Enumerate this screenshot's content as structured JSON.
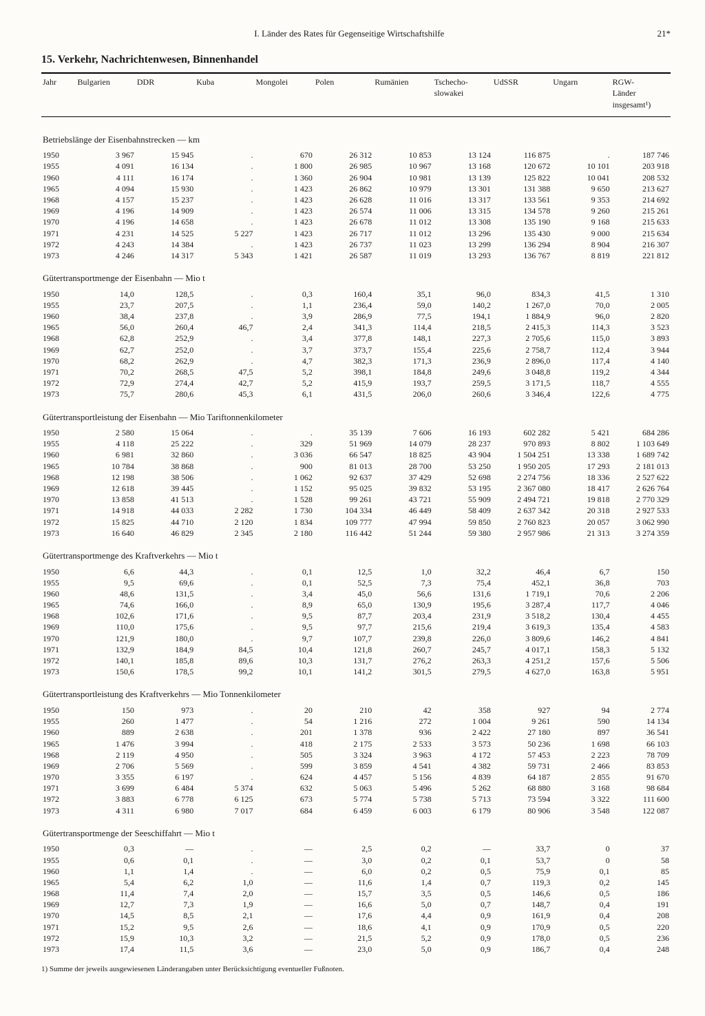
{
  "header": {
    "left": "I. Länder des Rates für Gegenseitige Wirtschaftshilfe",
    "right": "21*"
  },
  "title": "15. Verkehr, Nachrichtenwesen, Binnenhandel",
  "columns": [
    "Jahr",
    "Bulgarien",
    "DDR",
    "Kuba",
    "Mongolei",
    "Polen",
    "Rumänien",
    "Tschecho-\nslowakei",
    "UdSSR",
    "Ungarn",
    "RGW-\nLänder\ninsgesamt¹)"
  ],
  "footnote": "1) Summe der jeweils ausgewiesenen Länderangaben unter Berücksichtigung eventueller Fußnoten.",
  "sections": [
    {
      "title": "Betriebslänge der Eisenbahnstrecken — km",
      "rows": [
        [
          "1950",
          "3 967",
          "15 945",
          ".",
          "670",
          "26 312",
          "10 853",
          "13 124",
          "116 875",
          ".",
          "187 746"
        ],
        [
          "1955",
          "4 091",
          "16 134",
          ".",
          "1 800",
          "26 985",
          "10 967",
          "13 168",
          "120 672",
          "10 101",
          "203 918"
        ],
        [
          "1960",
          "4 111",
          "16 174",
          ".",
          "1 360",
          "26 904",
          "10 981",
          "13 139",
          "125 822",
          "10 041",
          "208 532"
        ],
        [
          "1965",
          "4 094",
          "15 930",
          ".",
          "1 423",
          "26 862",
          "10 979",
          "13 301",
          "131 388",
          "9 650",
          "213 627"
        ],
        [
          "1968",
          "4 157",
          "15 237",
          ".",
          "1 423",
          "26 628",
          "11 016",
          "13 317",
          "133 561",
          "9 353",
          "214 692"
        ],
        [
          "1969",
          "4 196",
          "14 909",
          ".",
          "1 423",
          "26 574",
          "11 006",
          "13 315",
          "134 578",
          "9 260",
          "215 261"
        ],
        [
          "1970",
          "4 196",
          "14 658",
          ".",
          "1 423",
          "26 678",
          "11 012",
          "13 308",
          "135 190",
          "9 168",
          "215 633"
        ],
        [
          "1971",
          "4 231",
          "14 525",
          "5 227",
          "1 423",
          "26 717",
          "11 012",
          "13 296",
          "135 430",
          "9 000",
          "215 634"
        ],
        [
          "1972",
          "4 243",
          "14 384",
          ".",
          "1 423",
          "26 737",
          "11 023",
          "13 299",
          "136 294",
          "8 904",
          "216 307"
        ],
        [
          "1973",
          "4 246",
          "14 317",
          "5 343",
          "1 421",
          "26 587",
          "11 019",
          "13 293",
          "136 767",
          "8 819",
          "221 812"
        ]
      ]
    },
    {
      "title": "Gütertransportmenge der Eisenbahn — Mio t",
      "rows": [
        [
          "1950",
          "14,0",
          "128,5",
          ".",
          "0,3",
          "160,4",
          "35,1",
          "96,0",
          "834,3",
          "41,5",
          "1 310"
        ],
        [
          "1955",
          "23,7",
          "207,5",
          ".",
          "1,1",
          "236,4",
          "59,0",
          "140,2",
          "1 267,0",
          "70,0",
          "2 005"
        ],
        [
          "1960",
          "38,4",
          "237,8",
          ".",
          "3,9",
          "286,9",
          "77,5",
          "194,1",
          "1 884,9",
          "96,0",
          "2 820"
        ],
        [
          "1965",
          "56,0",
          "260,4",
          "46,7",
          "2,4",
          "341,3",
          "114,4",
          "218,5",
          "2 415,3",
          "114,3",
          "3 523"
        ],
        [
          "1968",
          "62,8",
          "252,9",
          ".",
          "3,4",
          "377,8",
          "148,1",
          "227,3",
          "2 705,6",
          "115,0",
          "3 893"
        ],
        [
          "1969",
          "62,7",
          "252,0",
          ".",
          "3,7",
          "373,7",
          "155,4",
          "225,6",
          "2 758,7",
          "112,4",
          "3 944"
        ],
        [
          "1970",
          "68,2",
          "262,9",
          ".",
          "4,7",
          "382,3",
          "171,3",
          "236,9",
          "2 896,0",
          "117,4",
          "4 140"
        ],
        [
          "1971",
          "70,2",
          "268,5",
          "47,5",
          "5,2",
          "398,1",
          "184,8",
          "249,6",
          "3 048,8",
          "119,2",
          "4 344"
        ],
        [
          "1972",
          "72,9",
          "274,4",
          "42,7",
          "5,2",
          "415,9",
          "193,7",
          "259,5",
          "3 171,5",
          "118,7",
          "4 555"
        ],
        [
          "1973",
          "75,7",
          "280,6",
          "45,3",
          "6,1",
          "431,5",
          "206,0",
          "260,6",
          "3 346,4",
          "122,6",
          "4 775"
        ]
      ]
    },
    {
      "title": "Gütertransportleistung der Eisenbahn — Mio Tariftonnenkilometer",
      "rows": [
        [
          "1950",
          "2 580",
          "15 064",
          ".",
          ".",
          "35 139",
          "7 606",
          "16 193",
          "602 282",
          "5 421",
          "684 286"
        ],
        [
          "1955",
          "4 118",
          "25 222",
          ".",
          "329",
          "51 969",
          "14 079",
          "28 237",
          "970 893",
          "8 802",
          "1 103 649"
        ],
        [
          "1960",
          "6 981",
          "32 860",
          ".",
          "3 036",
          "66 547",
          "18 825",
          "43 904",
          "1 504 251",
          "13 338",
          "1 689 742"
        ],
        [
          "1965",
          "10 784",
          "38 868",
          ".",
          "900",
          "81 013",
          "28 700",
          "53 250",
          "1 950 205",
          "17 293",
          "2 181 013"
        ],
        [
          "1968",
          "12 198",
          "38 506",
          ".",
          "1 062",
          "92 637",
          "37 429",
          "52 698",
          "2 274 756",
          "18 336",
          "2 527 622"
        ],
        [
          "1969",
          "12 618",
          "39 445",
          ".",
          "1 152",
          "95 025",
          "39 832",
          "53 195",
          "2 367 080",
          "18 417",
          "2 626 764"
        ],
        [
          "1970",
          "13 858",
          "41 513",
          ".",
          "1 528",
          "99 261",
          "43 721",
          "55 909",
          "2 494 721",
          "19 818",
          "2 770 329"
        ],
        [
          "1971",
          "14 918",
          "44 033",
          "2 282",
          "1 730",
          "104 334",
          "46 449",
          "58 409",
          "2 637 342",
          "20 318",
          "2 927 533"
        ],
        [
          "1972",
          "15 825",
          "44 710",
          "2 120",
          "1 834",
          "109 777",
          "47 994",
          "59 850",
          "2 760 823",
          "20 057",
          "3 062 990"
        ],
        [
          "1973",
          "16 640",
          "46 829",
          "2 345",
          "2 180",
          "116 442",
          "51 244",
          "59 380",
          "2 957 986",
          "21 313",
          "3 274 359"
        ]
      ]
    },
    {
      "title": "Gütertransportmenge des Kraftverkehrs — Mio t",
      "rows": [
        [
          "1950",
          "6,6",
          "44,3",
          ".",
          "0,1",
          "12,5",
          "1,0",
          "32,2",
          "46,4",
          "6,7",
          "150"
        ],
        [
          "1955",
          "9,5",
          "69,6",
          ".",
          "0,1",
          "52,5",
          "7,3",
          "75,4",
          "452,1",
          "36,8",
          "703"
        ],
        [
          "1960",
          "48,6",
          "131,5",
          ".",
          "3,4",
          "45,0",
          "56,6",
          "131,6",
          "1 719,1",
          "70,6",
          "2 206"
        ],
        [
          "1965",
          "74,6",
          "166,0",
          ".",
          "8,9",
          "65,0",
          "130,9",
          "195,6",
          "3 287,4",
          "117,7",
          "4 046"
        ],
        [
          "1968",
          "102,6",
          "171,6",
          ".",
          "9,5",
          "87,7",
          "203,4",
          "231,9",
          "3 518,2",
          "130,4",
          "4 455"
        ],
        [
          "1969",
          "110,0",
          "175,6",
          ".",
          "9,5",
          "97,7",
          "215,6",
          "219,4",
          "3 619,3",
          "135,4",
          "4 583"
        ],
        [
          "1970",
          "121,9",
          "180,0",
          ".",
          "9,7",
          "107,7",
          "239,8",
          "226,0",
          "3 809,6",
          "146,2",
          "4 841"
        ],
        [
          "1971",
          "132,9",
          "184,9",
          "84,5",
          "10,4",
          "121,8",
          "260,7",
          "245,7",
          "4 017,1",
          "158,3",
          "5 132"
        ],
        [
          "1972",
          "140,1",
          "185,8",
          "89,6",
          "10,3",
          "131,7",
          "276,2",
          "263,3",
          "4 251,2",
          "157,6",
          "5 506"
        ],
        [
          "1973",
          "150,6",
          "178,5",
          "99,2",
          "10,1",
          "141,2",
          "301,5",
          "279,5",
          "4 627,0",
          "163,8",
          "5 951"
        ]
      ]
    },
    {
      "title": "Gütertransportleistung des Kraftverkehrs — Mio Tonnenkilometer",
      "rows": [
        [
          "1950",
          "150",
          "973",
          ".",
          "20",
          "210",
          "42",
          "358",
          "927",
          "94",
          "2 774"
        ],
        [
          "1955",
          "260",
          "1 477",
          ".",
          "54",
          "1 216",
          "272",
          "1 004",
          "9 261",
          "590",
          "14 134"
        ],
        [
          "1960",
          "889",
          "2 638",
          ".",
          "201",
          "1 378",
          "936",
          "2 422",
          "27 180",
          "897",
          "36 541"
        ],
        [
          "1965",
          "1 476",
          "3 994",
          ".",
          "418",
          "2 175",
          "2 533",
          "3 573",
          "50 236",
          "1 698",
          "66 103"
        ],
        [
          "1968",
          "2 119",
          "4 950",
          ".",
          "505",
          "3 324",
          "3 963",
          "4 172",
          "57 453",
          "2 223",
          "78 709"
        ],
        [
          "1969",
          "2 706",
          "5 569",
          ".",
          "599",
          "3 859",
          "4 541",
          "4 382",
          "59 731",
          "2 466",
          "83 853"
        ],
        [
          "1970",
          "3 355",
          "6 197",
          ".",
          "624",
          "4 457",
          "5 156",
          "4 839",
          "64 187",
          "2 855",
          "91 670"
        ],
        [
          "1971",
          "3 699",
          "6 484",
          "5 374",
          "632",
          "5 063",
          "5 496",
          "5 262",
          "68 880",
          "3 168",
          "98 684"
        ],
        [
          "1972",
          "3 883",
          "6 778",
          "6 125",
          "673",
          "5 774",
          "5 738",
          "5 713",
          "73 594",
          "3 322",
          "111 600"
        ],
        [
          "1973",
          "4 311",
          "6 980",
          "7 017",
          "684",
          "6 459",
          "6 003",
          "6 179",
          "80 906",
          "3 548",
          "122 087"
        ]
      ]
    },
    {
      "title": "Gütertransportmenge der Seeschiffahrt — Mio t",
      "rows": [
        [
          "1950",
          "0,3",
          "—",
          ".",
          "—",
          "2,5",
          "0,2",
          "—",
          "33,7",
          "0",
          "37"
        ],
        [
          "1955",
          "0,6",
          "0,1",
          ".",
          "—",
          "3,0",
          "0,2",
          "0,1",
          "53,7",
          "0",
          "58"
        ],
        [
          "1960",
          "1,1",
          "1,4",
          ".",
          "—",
          "6,0",
          "0,2",
          "0,5",
          "75,9",
          "0,1",
          "85"
        ],
        [
          "1965",
          "5,4",
          "6,2",
          "1,0",
          "—",
          "11,6",
          "1,4",
          "0,7",
          "119,3",
          "0,2",
          "145"
        ],
        [
          "1968",
          "11,4",
          "7,4",
          "2,0",
          "—",
          "15,7",
          "3,5",
          "0,5",
          "146,6",
          "0,5",
          "186"
        ],
        [
          "1969",
          "12,7",
          "7,3",
          "1,9",
          "—",
          "16,6",
          "5,0",
          "0,7",
          "148,7",
          "0,4",
          "191"
        ],
        [
          "1970",
          "14,5",
          "8,5",
          "2,1",
          "—",
          "17,6",
          "4,4",
          "0,9",
          "161,9",
          "0,4",
          "208"
        ],
        [
          "1971",
          "15,2",
          "9,5",
          "2,6",
          "—",
          "18,6",
          "4,1",
          "0,9",
          "170,9",
          "0,5",
          "220"
        ],
        [
          "1972",
          "15,9",
          "10,3",
          "3,2",
          "—",
          "21,5",
          "5,2",
          "0,9",
          "178,0",
          "0,5",
          "236"
        ],
        [
          "1973",
          "17,4",
          "11,5",
          "3,6",
          "—",
          "23,0",
          "5,0",
          "0,9",
          "186,7",
          "0,4",
          "248"
        ]
      ]
    }
  ]
}
